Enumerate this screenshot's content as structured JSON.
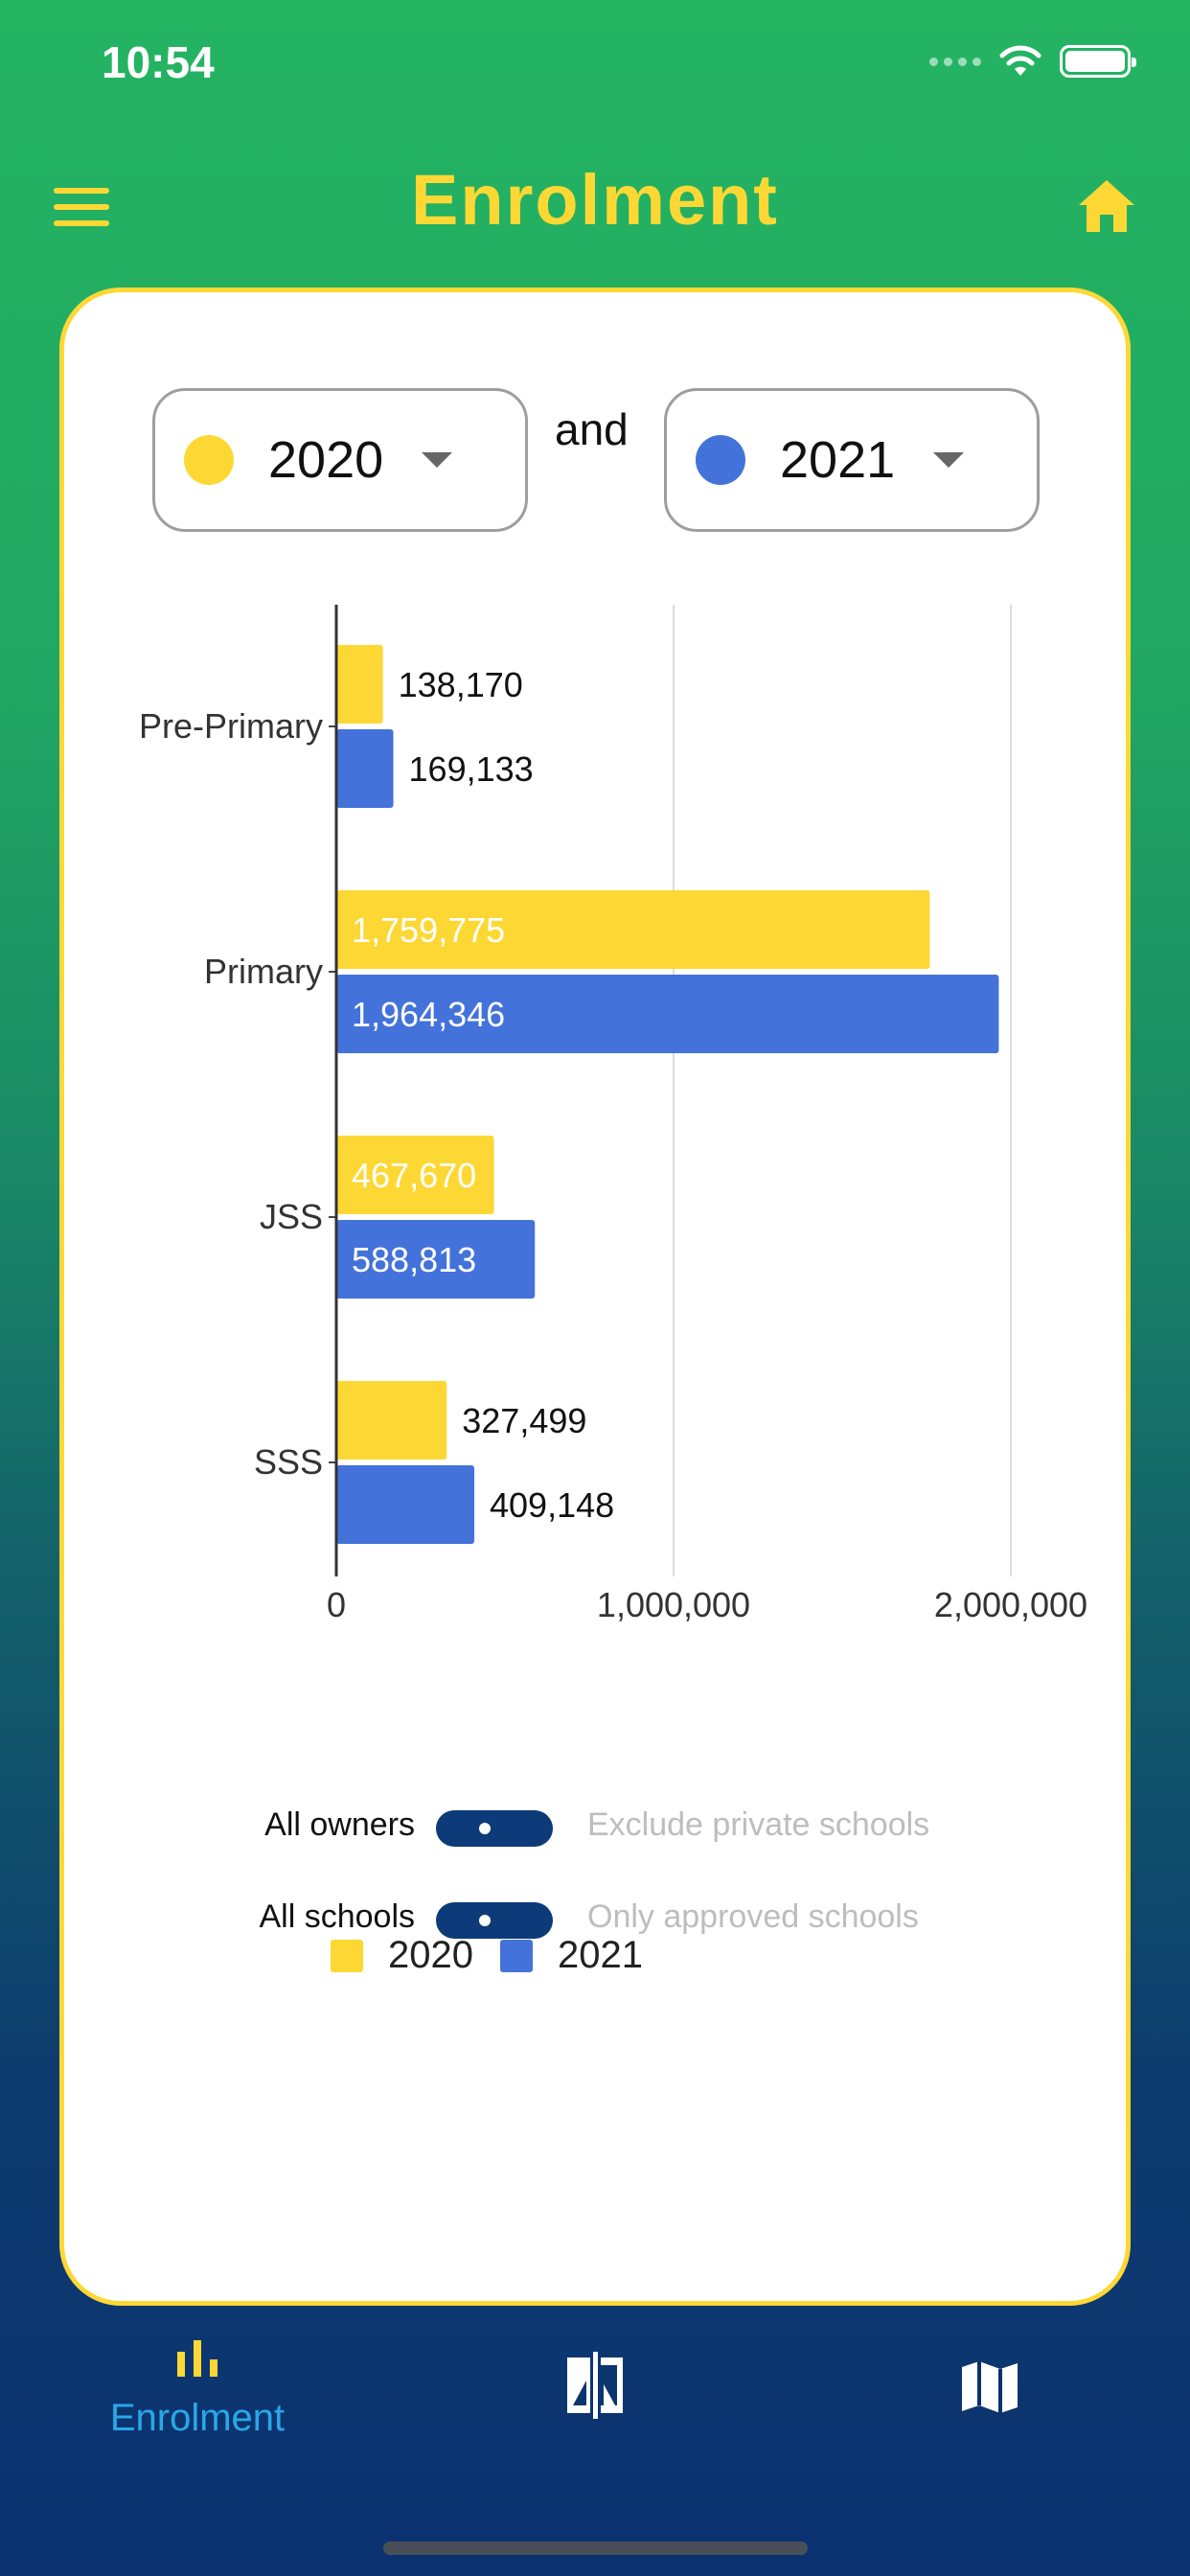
{
  "status_bar": {
    "time": "10:54"
  },
  "header": {
    "title": "Enrolment",
    "menu_icon": "menu-icon",
    "home_icon": "home-icon",
    "accent_color": "#fdd835"
  },
  "year_selectors": {
    "left": {
      "value": "2020",
      "color": "#fdd835"
    },
    "connector": "and",
    "right": {
      "value": "2021",
      "color": "#4472db"
    }
  },
  "chart_data": {
    "type": "bar",
    "orientation": "horizontal",
    "categories": [
      "Pre-Primary",
      "Primary",
      "JSS",
      "SSS"
    ],
    "series": [
      {
        "name": "2020",
        "color": "#fdd835",
        "values": [
          138170,
          1759775,
          467670,
          327499
        ]
      },
      {
        "name": "2021",
        "color": "#4472db",
        "values": [
          169133,
          1964346,
          588813,
          409148
        ]
      }
    ],
    "data_labels": [
      [
        "138,170",
        "1,759,775",
        "467,670",
        "327,499"
      ],
      [
        "169,133",
        "1,964,346",
        "588,813",
        "409,148"
      ]
    ],
    "x_ticks": [
      0,
      1000000,
      2000000
    ],
    "x_tick_labels": [
      "0",
      "1,000,000",
      "2,000,000"
    ],
    "xlim": [
      0,
      2000000
    ],
    "grid": true,
    "legend_placement": "bottom",
    "title": "",
    "xlabel": "",
    "ylabel": ""
  },
  "filters": [
    {
      "left_label": "All owners",
      "right_label": "Exclude private schools"
    },
    {
      "left_label": "All schools",
      "right_label": "Only approved schools"
    }
  ],
  "bottom_nav": {
    "items": [
      {
        "label": "Enrolment",
        "icon": "bar-chart-icon",
        "active": true
      },
      {
        "label": "",
        "icon": "compare-icon",
        "active": false
      },
      {
        "label": "",
        "icon": "map-icon",
        "active": false
      }
    ],
    "active_color": "#2aa7e8"
  }
}
